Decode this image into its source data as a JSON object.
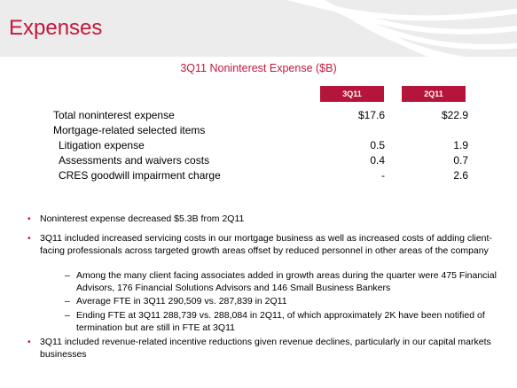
{
  "slide": {
    "title": "Expenses"
  },
  "table": {
    "title": "3Q11 Noninterest Expense ($B)",
    "columns": [
      "3Q11",
      "2Q11"
    ],
    "rows": [
      {
        "label": "Total noninterest expense",
        "v1": "$17.6",
        "v2": "$22.9",
        "indent": false
      },
      {
        "label": "Mortgage-related selected items",
        "v1": "",
        "v2": "",
        "indent": false
      },
      {
        "label": "Litigation expense",
        "v1": "0.5",
        "v2": "1.9",
        "indent": true
      },
      {
        "label": "Assessments and waivers costs",
        "v1": "0.4",
        "v2": "0.7",
        "indent": true
      },
      {
        "label": "CRES goodwill impairment charge",
        "v1": "-",
        "v2": "2.6",
        "indent": true
      }
    ]
  },
  "bullets": [
    {
      "text": "Noninterest expense decreased $5.3B from 2Q11"
    },
    {
      "text": "3Q11 included increased servicing costs in our mortgage business as well as increased costs of adding client-facing professionals across targeted growth areas offset by reduced personnel in other areas of the company",
      "sub": [
        "Among the many client facing associates added in growth areas during the quarter were 475 Financial Advisors, 176 Financial Solutions Advisors and 146 Small Business Bankers",
        "Average FTE in 3Q11 290,509 vs. 287,839 in 2Q11",
        "Ending FTE at 3Q11 288,739 vs. 288,084 in 2Q11, of which approximately 2K have been notified of termination but are still in FTE at 3Q11"
      ]
    },
    {
      "text": "3Q11 included revenue-related incentive reductions given revenue declines, particularly in our capital markets businesses"
    }
  ],
  "markers": {
    "bullet": "•",
    "dash": "–"
  },
  "colors": {
    "accent": "#c3183c",
    "header_fill": "#b5153a",
    "band": "#ececec"
  }
}
